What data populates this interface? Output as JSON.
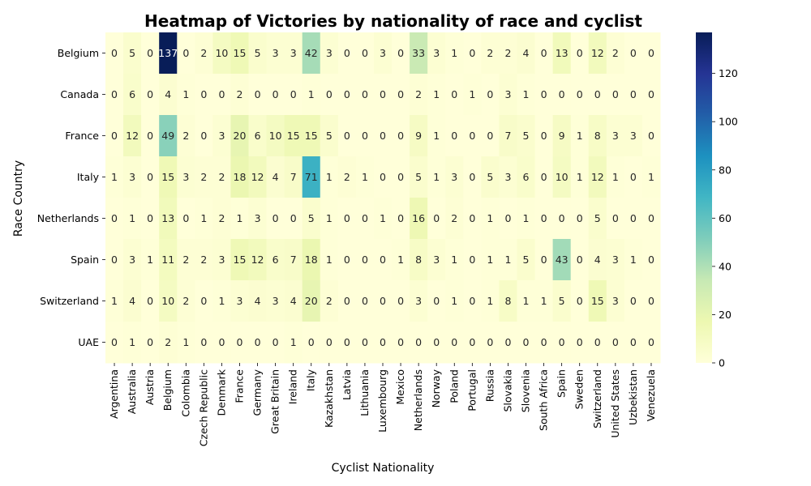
{
  "chart_data": {
    "type": "heatmap",
    "title": "Heatmap of Victories by nationality of race and cyclist",
    "xlabel": "Cyclist Nationality",
    "ylabel": "Race Country",
    "x_categories": [
      "Argentina",
      "Australia",
      "Austria",
      "Belgium",
      "Colombia",
      "Czech Republic",
      "Denmark",
      "France",
      "Germany",
      "Great Britain",
      "Ireland",
      "Italy",
      "Kazakhstan",
      "Latvia",
      "Lithuania",
      "Luxembourg",
      "Mexico",
      "Netherlands",
      "Norway",
      "Poland",
      "Portugal",
      "Russia",
      "Slovakia",
      "Slovenia",
      "South Africa",
      "Spain",
      "Sweden",
      "Switzerland",
      "United States",
      "Uzbekistan",
      "Venezuela"
    ],
    "y_categories": [
      "Belgium",
      "Canada",
      "France",
      "Italy",
      "Netherlands",
      "Spain",
      "Switzerland",
      "UAE"
    ],
    "values": [
      [
        0,
        5,
        0,
        137,
        0,
        2,
        10,
        15,
        5,
        3,
        3,
        42,
        3,
        0,
        0,
        3,
        0,
        33,
        3,
        1,
        0,
        2,
        2,
        4,
        0,
        13,
        0,
        12,
        2,
        0,
        0
      ],
      [
        0,
        6,
        0,
        4,
        1,
        0,
        0,
        2,
        0,
        0,
        0,
        1,
        0,
        0,
        0,
        0,
        0,
        2,
        1,
        0,
        1,
        0,
        3,
        1,
        0,
        0,
        0,
        0,
        0,
        0,
        0
      ],
      [
        0,
        12,
        0,
        49,
        2,
        0,
        3,
        20,
        6,
        10,
        15,
        15,
        5,
        0,
        0,
        0,
        0,
        9,
        1,
        0,
        0,
        0,
        7,
        5,
        0,
        9,
        1,
        8,
        3,
        3,
        0
      ],
      [
        1,
        3,
        0,
        15,
        3,
        2,
        2,
        18,
        12,
        4,
        7,
        71,
        1,
        2,
        1,
        0,
        0,
        5,
        1,
        3,
        0,
        5,
        3,
        6,
        0,
        10,
        1,
        12,
        1,
        0,
        1
      ],
      [
        0,
        1,
        0,
        13,
        0,
        1,
        2,
        1,
        3,
        0,
        0,
        5,
        1,
        0,
        0,
        1,
        0,
        16,
        0,
        2,
        0,
        1,
        0,
        1,
        0,
        0,
        0,
        5,
        0,
        0,
        0
      ],
      [
        0,
        3,
        1,
        11,
        2,
        2,
        3,
        15,
        12,
        6,
        7,
        18,
        1,
        0,
        0,
        0,
        1,
        8,
        3,
        1,
        0,
        1,
        1,
        5,
        0,
        43,
        0,
        4,
        3,
        1,
        0
      ],
      [
        1,
        4,
        0,
        10,
        2,
        0,
        1,
        3,
        4,
        3,
        4,
        20,
        2,
        0,
        0,
        0,
        0,
        3,
        0,
        1,
        0,
        1,
        8,
        1,
        1,
        5,
        0,
        15,
        3,
        0,
        0
      ],
      [
        0,
        1,
        0,
        2,
        1,
        0,
        0,
        0,
        0,
        0,
        1,
        0,
        0,
        0,
        0,
        0,
        0,
        0,
        0,
        0,
        0,
        0,
        0,
        0,
        0,
        0,
        0,
        0,
        0,
        0,
        0
      ]
    ],
    "vmin": 0,
    "vmax": 137,
    "colormap": "YlGnBu",
    "colorbar_ticks": [
      0,
      20,
      40,
      60,
      80,
      100,
      120
    ],
    "colormap_stops": [
      "#ffffd9",
      "#edf8b1",
      "#c7e9b4",
      "#7fcdbb",
      "#41b6c4",
      "#1d91c0",
      "#225ea8",
      "#253494",
      "#081d58"
    ]
  }
}
